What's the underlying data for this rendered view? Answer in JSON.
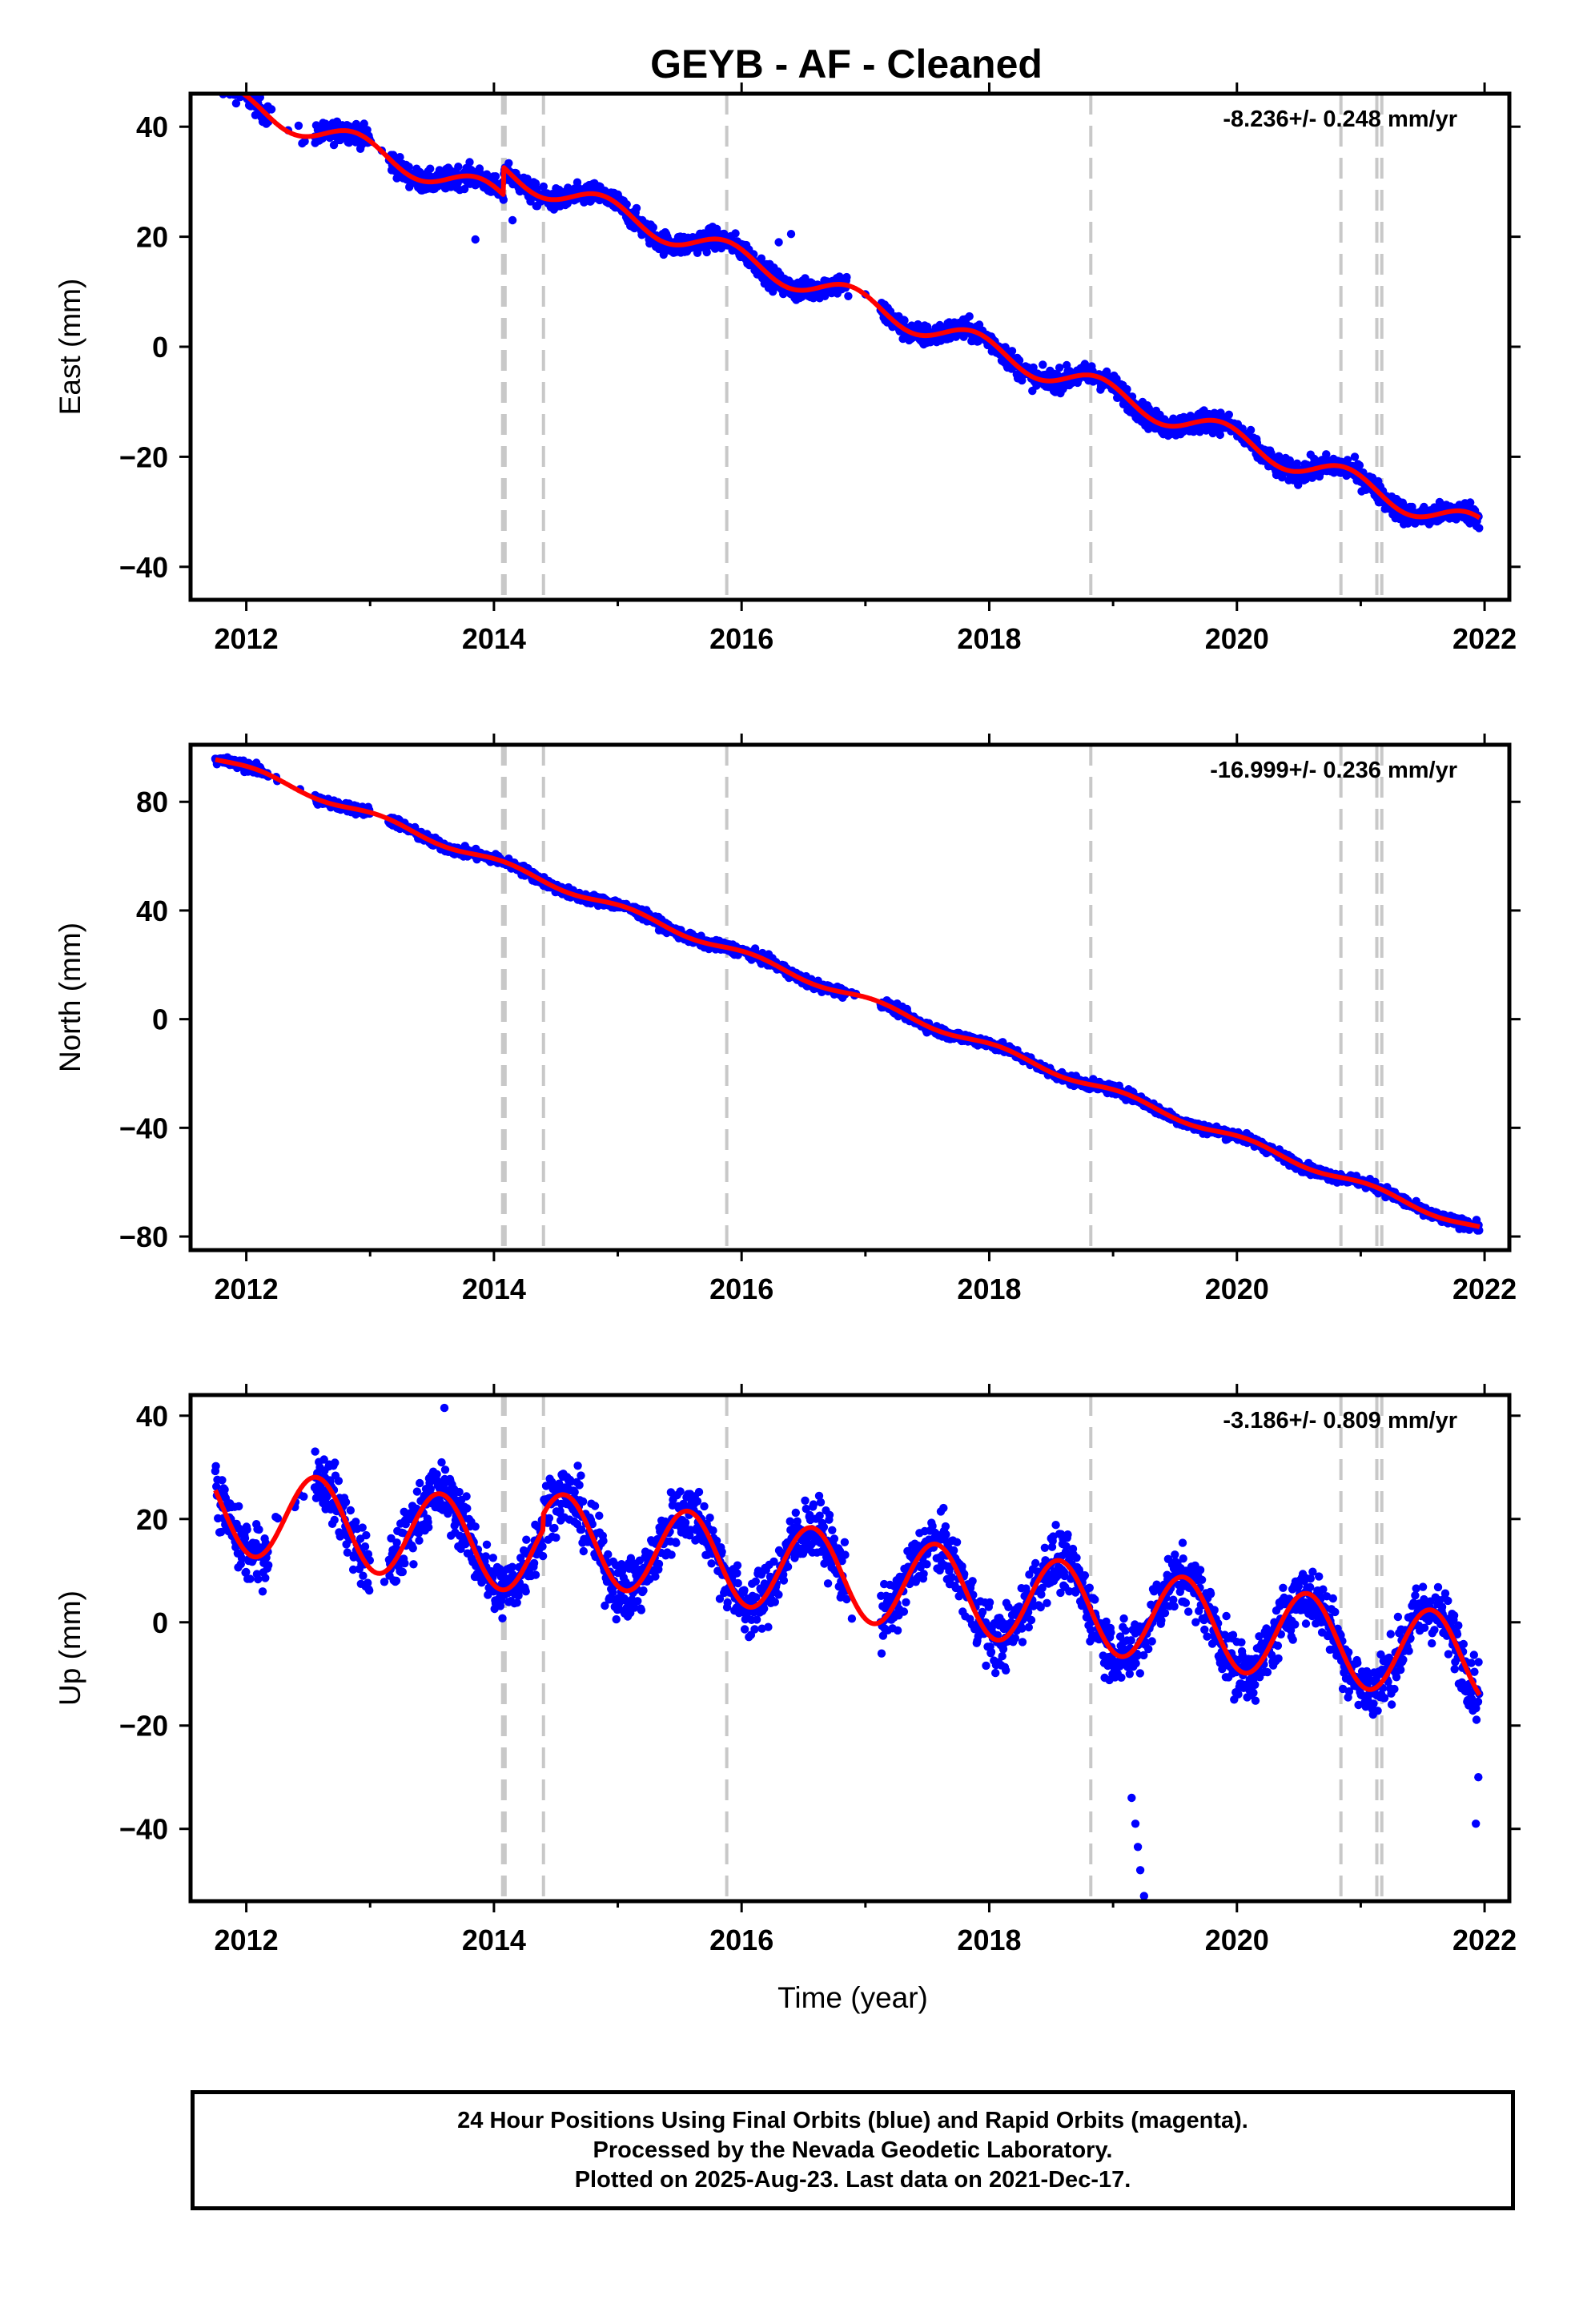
{
  "chart_data": {
    "type": "scatter",
    "title": "GEYB  - AF - Cleaned",
    "xlabel": "Time (year)",
    "xlim": [
      2011.55,
      2022.2
    ],
    "xticks": [
      2012,
      2014,
      2016,
      2018,
      2020,
      2022
    ],
    "xtick_labels": [
      "2012",
      "2014",
      "2016",
      "2018",
      "2020",
      "2022"
    ],
    "data_start": 2011.75,
    "data_end": 2021.96,
    "grid": false,
    "colors": {
      "points": "#0000ff",
      "model": "#ff0000",
      "breaks": "#c8c8c8",
      "frame": "#000000"
    },
    "breaks": [
      2014.07,
      2014.09,
      2014.4,
      2015.88,
      2018.82,
      2020.84,
      2021.13,
      2021.17
    ],
    "panels": [
      {
        "name": "east",
        "ylabel": "East (mm)",
        "ylim": [
          -46,
          46
        ],
        "yticks": [
          -40,
          -20,
          0,
          20,
          40
        ],
        "ytick_labels": [
          "−40",
          "−20",
          "0",
          "20",
          "40"
        ],
        "rate_label": "-8.236+/- 0.248 mm/yr",
        "rate": -8.236,
        "model": {
          "intercept": 27.5,
          "ref_year": 2014.0,
          "annual_amp": 2.2,
          "annual_phase": 2.3,
          "offsets": [
            [
              2014.08,
              5.0
            ]
          ]
        },
        "noise": 1.4,
        "outliers": [
          [
            2016.3,
            19.0
          ],
          [
            2016.4,
            20.5
          ],
          [
            2013.85,
            19.5
          ],
          [
            2014.15,
            23.0
          ]
        ]
      },
      {
        "name": "north",
        "ylabel": "North (mm)",
        "ylim": [
          -85,
          101
        ],
        "yticks": [
          -80,
          -40,
          0,
          40,
          80
        ],
        "ytick_labels": [
          "−80",
          "−40",
          "0",
          "40",
          "80"
        ],
        "rate_label": "-16.999+/- 0.236 mm/yr",
        "rate": -16.999,
        "model": {
          "intercept": 58.0,
          "ref_year": 2014.0,
          "annual_amp": 1.3,
          "annual_phase": 1.0,
          "offsets": []
        },
        "noise": 1.3,
        "outliers": []
      },
      {
        "name": "up",
        "ylabel": "Up (mm)",
        "ylim": [
          -54,
          44
        ],
        "yticks": [
          -40,
          -20,
          0,
          20,
          40
        ],
        "ytick_labels": [
          "−40",
          "−20",
          "0",
          "20",
          "40"
        ],
        "rate_label": "-3.186+/- 0.809 mm/yr",
        "rate": -3.186,
        "model": {
          "intercept": 15.0,
          "ref_year": 2014.0,
          "annual_amp": 8.5,
          "annual_phase": 4.3,
          "offsets": [
            [
              2014.4,
              3.0
            ]
          ]
        },
        "noise": 4.2,
        "outliers": [
          [
            2019.25,
            -53.0
          ],
          [
            2019.22,
            -48.0
          ],
          [
            2019.2,
            -43.5
          ],
          [
            2019.18,
            -39.0
          ],
          [
            2019.15,
            -34.0
          ],
          [
            2021.93,
            -39.0
          ],
          [
            2021.95,
            -30.0
          ],
          [
            2013.6,
            41.5
          ]
        ]
      }
    ]
  },
  "footer": {
    "line1": "24 Hour Positions Using Final Orbits (blue) and Rapid Orbits (magenta).",
    "line2": "Processed by the Nevada Geodetic Laboratory.",
    "line3": "Plotted on 2025-Aug-23. Last data on 2021-Dec-17."
  }
}
